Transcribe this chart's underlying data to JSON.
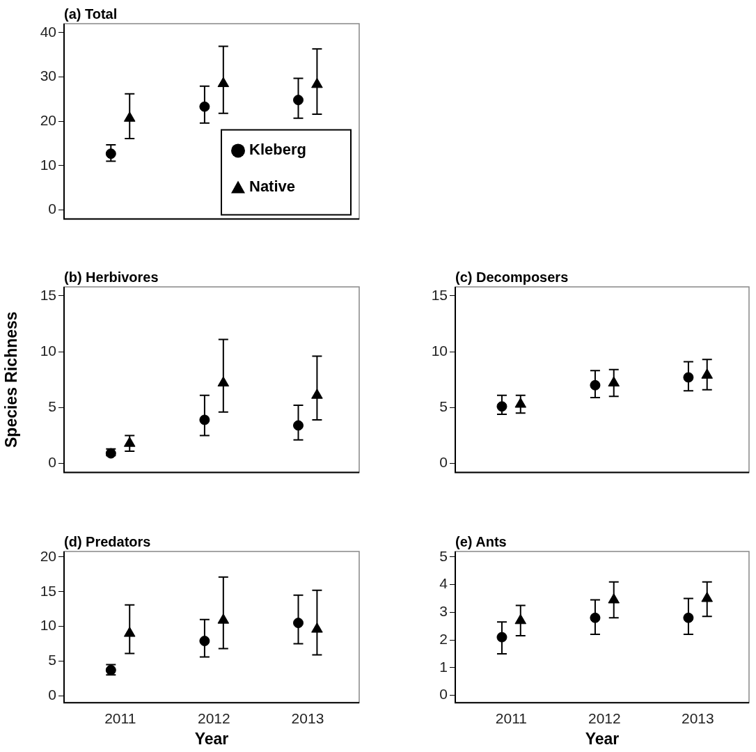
{
  "chart_data": [
    {
      "type": "scatter",
      "title": "(a) Total",
      "categories": [
        "2011",
        "2012",
        "2013"
      ],
      "series": [
        {
          "name": "Kleberg",
          "color": "#000000",
          "marker": "circle",
          "values": [
            12.7,
            23.3,
            24.8
          ],
          "errors": [
            [
              11,
              14.7
            ],
            [
              19.6,
              27.9
            ],
            [
              20.7,
              29.7
            ]
          ]
        },
        {
          "name": "Native",
          "color": "#000000",
          "marker": "triangle",
          "values": [
            20.7,
            28.5,
            28.3
          ],
          "errors": [
            [
              16.1,
              26.2
            ],
            [
              21.8,
              36.9
            ],
            [
              21.6,
              36.3
            ]
          ]
        }
      ],
      "ylim": [
        -2,
        42
      ],
      "yticks": [
        0,
        10,
        20,
        30,
        40
      ],
      "grid": false,
      "legend": "bottom right",
      "tick_labels": "y"
    },
    {
      "type": "scatter",
      "title": "(b) Herbivores",
      "ylabel": "Species Richness",
      "categories": [
        "2011",
        "2012",
        "2013"
      ],
      "series": [
        {
          "color": "#000000",
          "marker": "circle",
          "values": [
            0.9,
            3.9,
            3.4
          ],
          "errors": [
            [
              0.7,
              1.3
            ],
            [
              2.5,
              6.1
            ],
            [
              2.1,
              5.2
            ]
          ]
        },
        {
          "color": "#000000",
          "marker": "triangle",
          "values": [
            1.8,
            7.2,
            6.1
          ],
          "errors": [
            [
              1.1,
              2.5
            ],
            [
              4.6,
              11.1
            ],
            [
              3.9,
              9.6
            ]
          ]
        }
      ],
      "ylim": [
        -0.8,
        15.8
      ],
      "yticks": [
        0,
        5,
        10,
        15
      ],
      "grid": false,
      "tick_labels": "y"
    },
    {
      "type": "scatter",
      "title": "(c) Decomposers",
      "categories": [
        "2011",
        "2012",
        "2013"
      ],
      "series": [
        {
          "color": "#000000",
          "marker": "circle",
          "values": [
            5.1,
            7.0,
            7.7
          ],
          "errors": [
            [
              4.4,
              6.1
            ],
            [
              5.9,
              8.3
            ],
            [
              6.5,
              9.1
            ]
          ]
        },
        {
          "color": "#000000",
          "marker": "triangle",
          "values": [
            5.3,
            7.2,
            7.9
          ],
          "errors": [
            [
              4.5,
              6.1
            ],
            [
              6.0,
              8.4
            ],
            [
              6.6,
              9.3
            ]
          ]
        }
      ],
      "ylim": [
        -0.8,
        15.8
      ],
      "yticks": [
        0,
        5,
        10,
        15
      ],
      "grid": false,
      "tick_labels": "y"
    },
    {
      "type": "scatter",
      "title": "(d) Predators",
      "xlabel": "Year",
      "categories": [
        "2011",
        "2012",
        "2013"
      ],
      "series": [
        {
          "color": "#000000",
          "marker": "circle",
          "values": [
            3.7,
            7.9,
            10.5
          ],
          "errors": [
            [
              3.0,
              4.5
            ],
            [
              5.6,
              11.0
            ],
            [
              7.5,
              14.5
            ]
          ]
        },
        {
          "color": "#000000",
          "marker": "triangle",
          "values": [
            9.0,
            10.9,
            9.6
          ],
          "errors": [
            [
              6.1,
              13.1
            ],
            [
              6.8,
              17.1
            ],
            [
              5.9,
              15.2
            ]
          ]
        }
      ],
      "ylim": [
        -1,
        20.8
      ],
      "yticks": [
        0,
        5,
        10,
        15,
        20
      ],
      "grid": false
    },
    {
      "type": "scatter",
      "title": "(e) Ants",
      "xlabel": "Year",
      "categories": [
        "2011",
        "2012",
        "2013"
      ],
      "series": [
        {
          "color": "#000000",
          "marker": "circle",
          "values": [
            2.1,
            2.8,
            2.8
          ],
          "errors": [
            [
              1.5,
              2.65
            ],
            [
              2.2,
              3.45
            ],
            [
              2.2,
              3.5
            ]
          ]
        },
        {
          "color": "#000000",
          "marker": "triangle",
          "values": [
            2.7,
            3.45,
            3.5
          ],
          "errors": [
            [
              2.15,
              3.25
            ],
            [
              2.8,
              4.1
            ],
            [
              2.85,
              4.1
            ]
          ]
        }
      ],
      "ylim": [
        -0.27,
        5.2
      ],
      "yticks": [
        0,
        1,
        2,
        3,
        4,
        5
      ],
      "grid": false
    }
  ]
}
